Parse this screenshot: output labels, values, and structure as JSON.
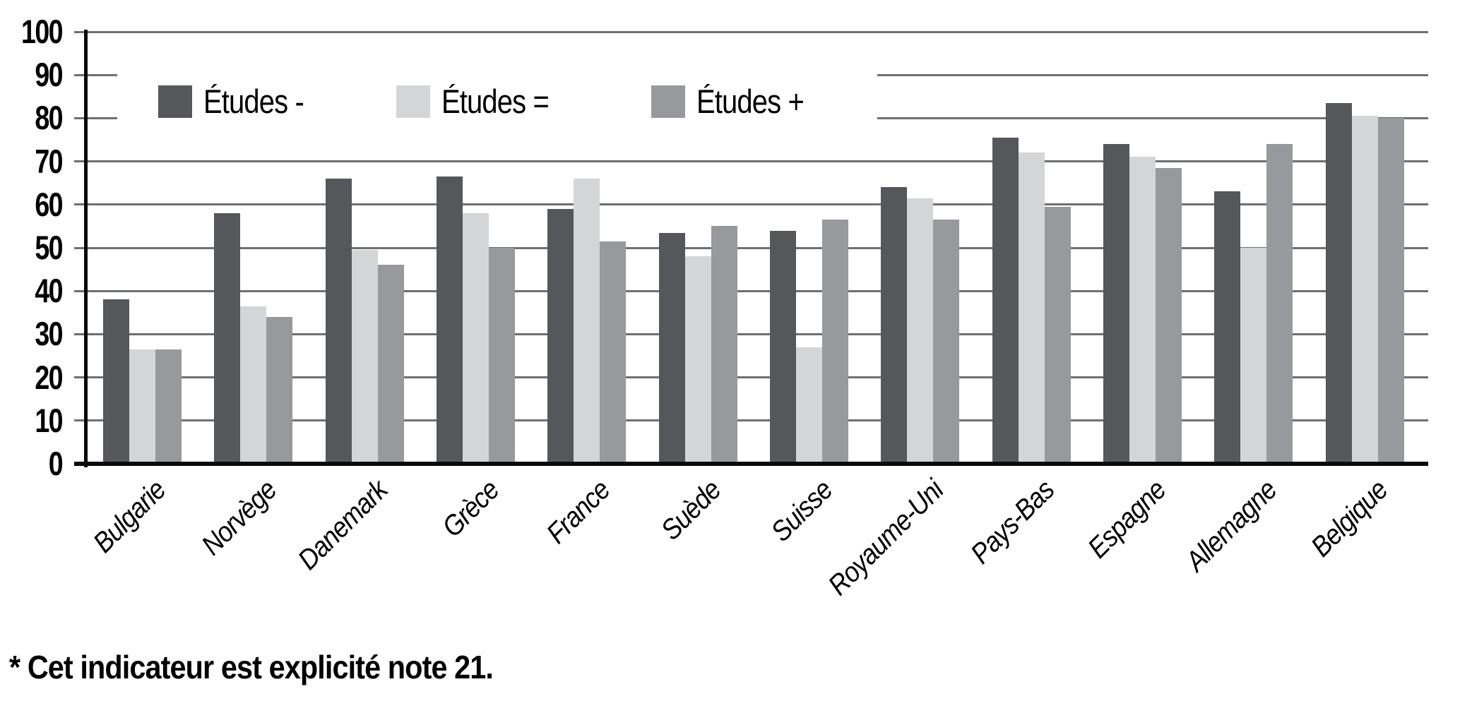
{
  "chart_data": {
    "type": "bar",
    "title": "",
    "xlabel": "",
    "ylabel": "",
    "categories": [
      "Bulgarie",
      "Norvège",
      "Danemark",
      "Grèce",
      "France",
      "Suède",
      "Suisse",
      "Royaume-Uni",
      "Pays-Bas",
      "Espagne",
      "Allemagne",
      "Belgique"
    ],
    "series": [
      {
        "name": "Études -",
        "color": "#56575a",
        "values": [
          38,
          58,
          66,
          66.5,
          59,
          53.5,
          54,
          64,
          75.5,
          74,
          63,
          83.5
        ]
      },
      {
        "name": "Études =",
        "color": "#d4d5d7",
        "values": [
          26.5,
          36.5,
          49.5,
          58,
          66,
          48,
          27,
          61.5,
          72,
          71,
          50,
          80.5
        ]
      },
      {
        "name": "Études +",
        "color": "#98999c",
        "values": [
          26.5,
          34,
          46,
          50,
          51.5,
          55,
          56.5,
          56.5,
          59.5,
          68.5,
          74,
          80
        ]
      }
    ],
    "ylim": [
      0,
      100
    ],
    "yticks": [
      0,
      10,
      20,
      30,
      40,
      50,
      60,
      70,
      80,
      90,
      100
    ],
    "grid": true,
    "legend_position": "top-inside"
  },
  "colors": {
    "gridline": "#6e6f72",
    "axis": "#0a0a0a",
    "background": "#ffffff",
    "text": "#000000"
  },
  "footnote": "* Cet indicateur est explicité note 21."
}
